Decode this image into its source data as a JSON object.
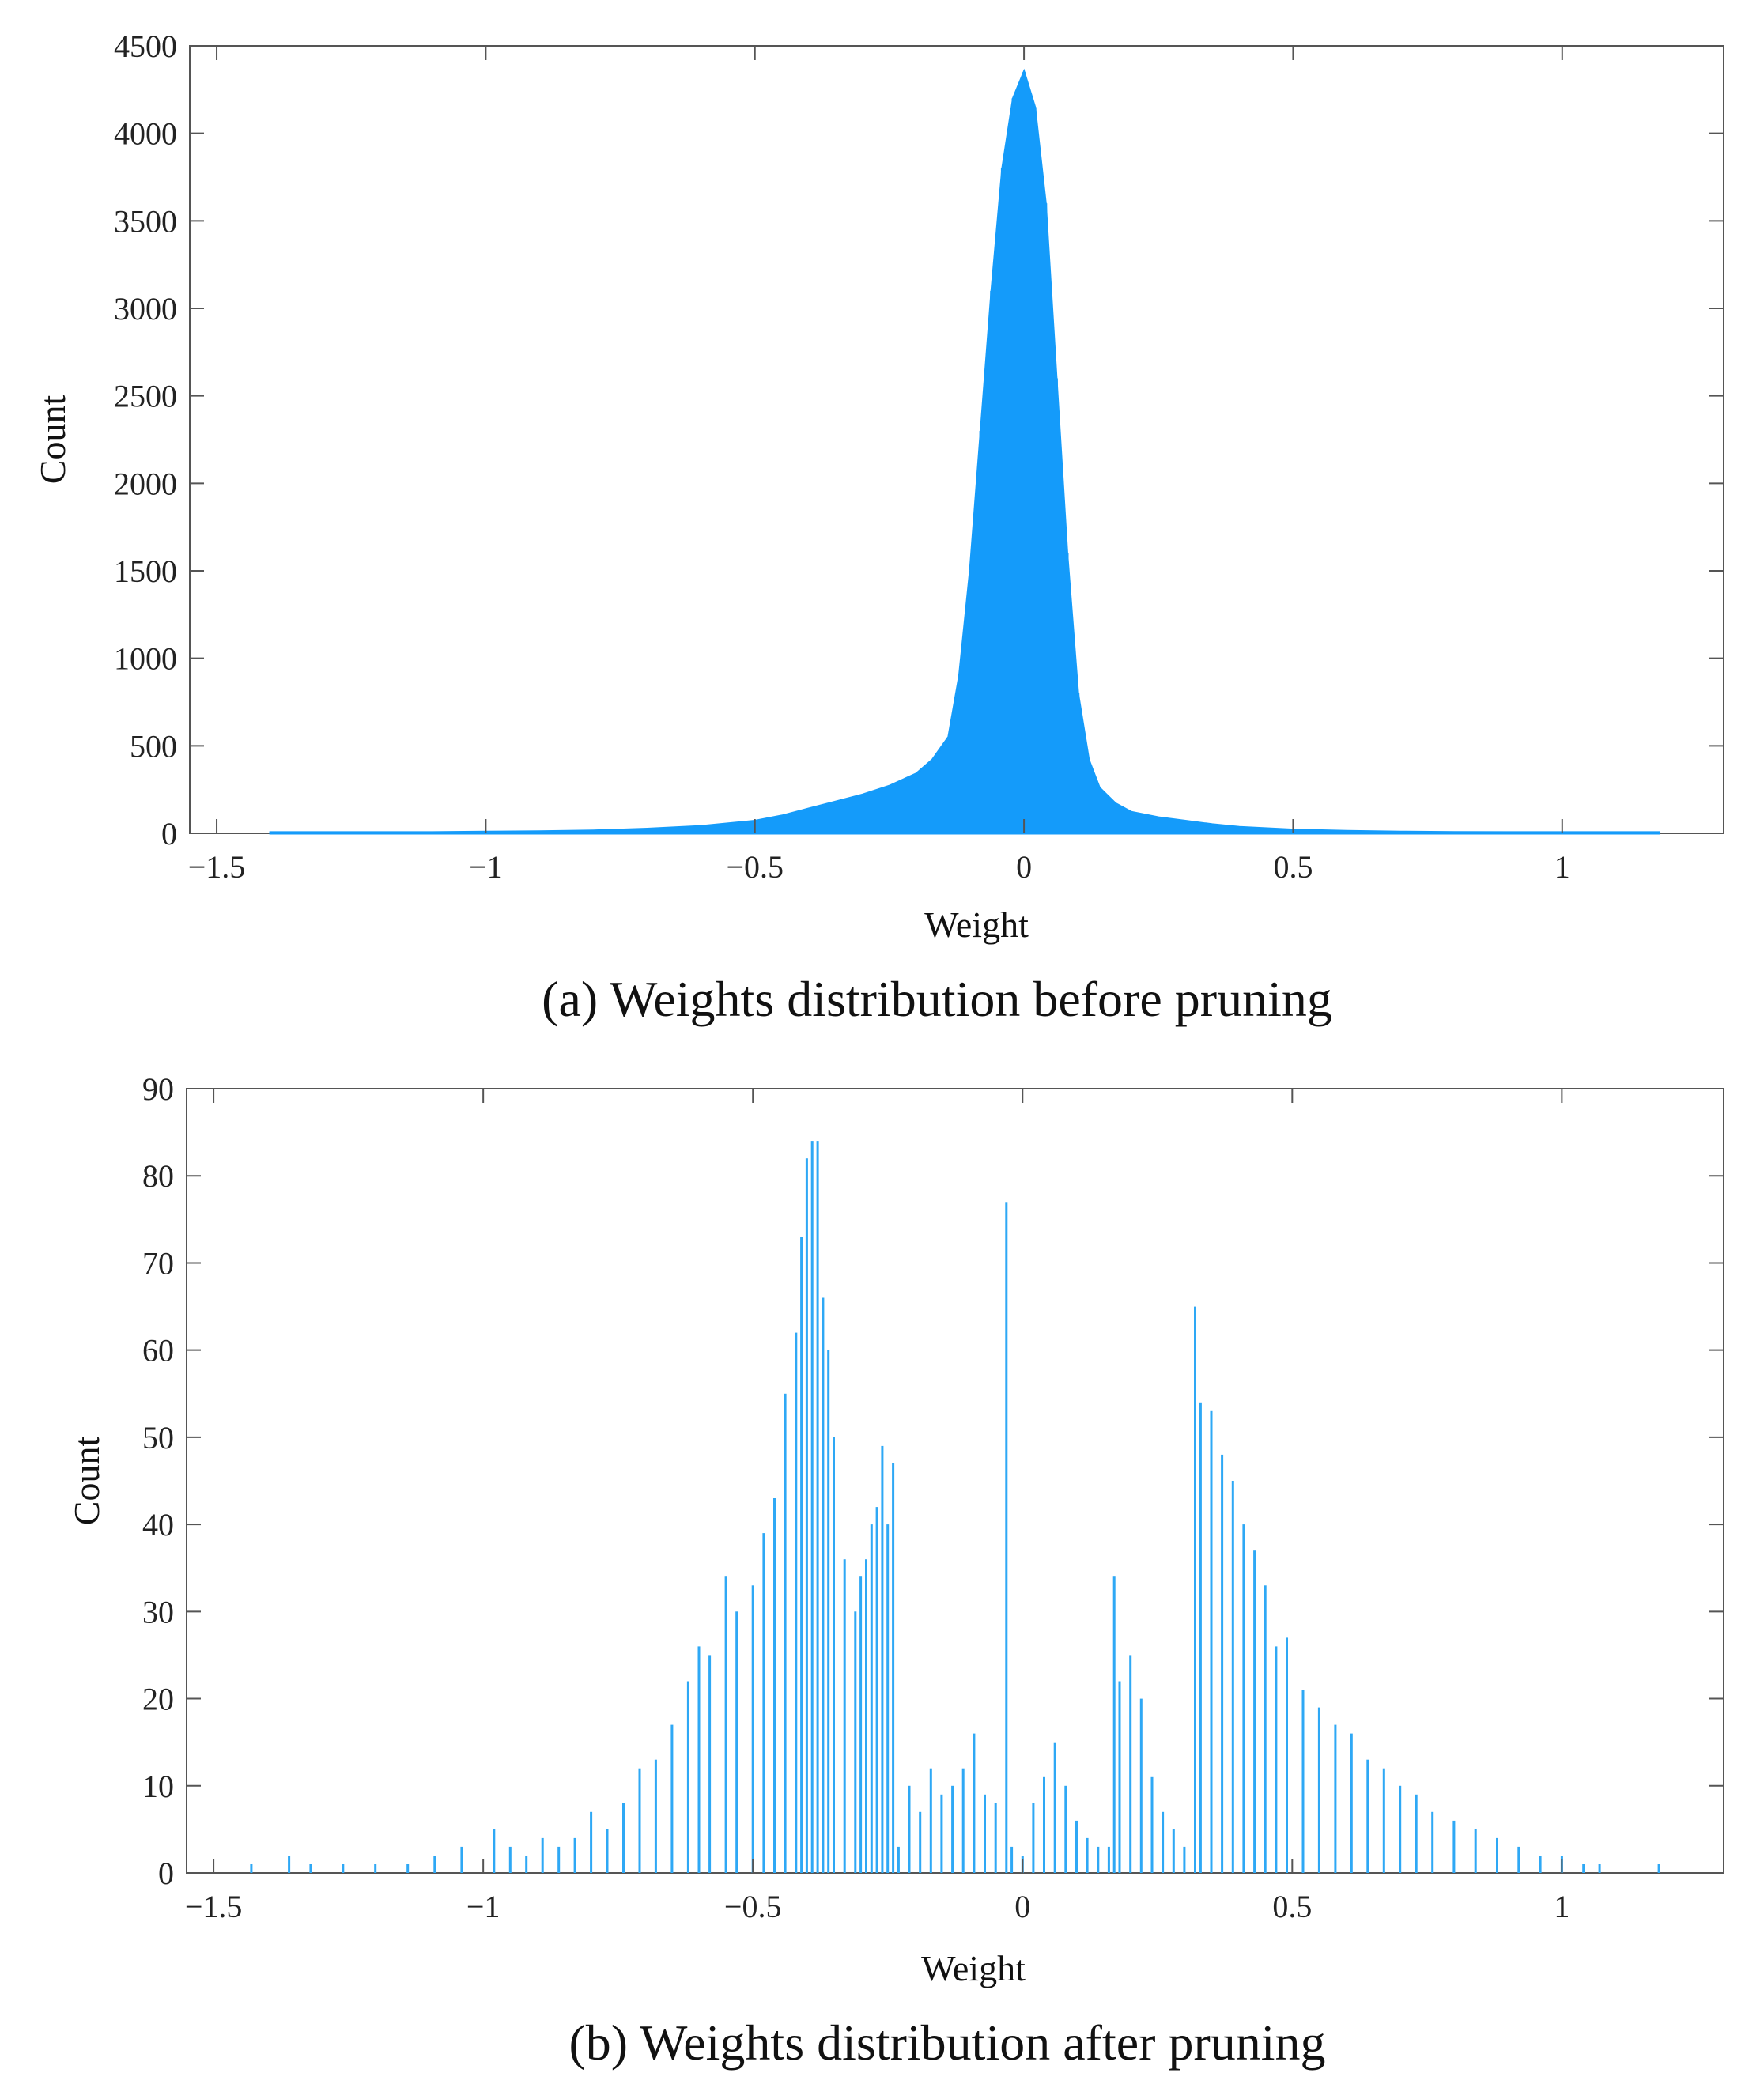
{
  "chart_data": [
    {
      "type": "bar",
      "color": "#149bfa",
      "title": "",
      "caption": "(a)  Weights distribution before pruning",
      "xlabel": "Weight",
      "ylabel": "Count",
      "xlim": [
        -1.55,
        1.3
      ],
      "ylim": [
        0,
        4500
      ],
      "xticks": [
        -1.5,
        -1,
        -0.5,
        0,
        0.5,
        1
      ],
      "xtick_labels": [
        "−1.5",
        "−1",
        "−0.5",
        "0",
        "0.5",
        "1"
      ],
      "yticks": [
        0,
        500,
        1000,
        1500,
        2000,
        2500,
        3000,
        3500,
        4000,
        4500
      ],
      "ytick_labels": [
        "0",
        "500",
        "1000",
        "1500",
        "2000",
        "2500",
        "3000",
        "3500",
        "4000",
        "4500"
      ],
      "x": [
        -1.4,
        -1.3,
        -1.2,
        -1.1,
        -1.0,
        -0.9,
        -0.8,
        -0.7,
        -0.6,
        -0.5,
        -0.45,
        -0.4,
        -0.35,
        -0.3,
        -0.25,
        -0.2,
        -0.17,
        -0.14,
        -0.12,
        -0.1,
        -0.08,
        -0.06,
        -0.04,
        -0.02,
        0.0,
        0.02,
        0.04,
        0.06,
        0.08,
        0.1,
        0.12,
        0.14,
        0.17,
        0.2,
        0.25,
        0.3,
        0.35,
        0.4,
        0.5,
        0.6,
        0.7,
        0.8,
        0.9,
        1.0,
        1.1,
        1.18
      ],
      "values": [
        5,
        5,
        5,
        5,
        8,
        10,
        15,
        25,
        40,
        70,
        100,
        140,
        180,
        220,
        270,
        340,
        420,
        550,
        900,
        1500,
        2300,
        3100,
        3800,
        4200,
        4350,
        4150,
        3600,
        2600,
        1600,
        800,
        420,
        260,
        170,
        120,
        90,
        70,
        50,
        35,
        20,
        12,
        8,
        6,
        5,
        5,
        5,
        5
      ]
    },
    {
      "type": "bar",
      "color": "#2ea8f5",
      "title": "",
      "caption": "(b)  Weights distribution after pruning",
      "xlabel": "Weight",
      "ylabel": "Count",
      "xlim": [
        -1.55,
        1.3
      ],
      "ylim": [
        0,
        90
      ],
      "xticks": [
        -1.5,
        -1,
        -0.5,
        0,
        0.5,
        1
      ],
      "xtick_labels": [
        "−1.5",
        "−1",
        "−0.5",
        "0",
        "0.5",
        "1"
      ],
      "yticks": [
        0,
        10,
        20,
        30,
        40,
        50,
        60,
        70,
        80,
        90
      ],
      "ytick_labels": [
        "0",
        "10",
        "20",
        "30",
        "40",
        "50",
        "60",
        "70",
        "80",
        "90"
      ],
      "x": [
        -1.43,
        -1.36,
        -1.32,
        -1.26,
        -1.2,
        -1.14,
        -1.09,
        -1.04,
        -0.98,
        -0.95,
        -0.92,
        -0.89,
        -0.86,
        -0.83,
        -0.8,
        -0.77,
        -0.74,
        -0.71,
        -0.68,
        -0.65,
        -0.62,
        -0.6,
        -0.58,
        -0.55,
        -0.53,
        -0.5,
        -0.48,
        -0.46,
        -0.44,
        -0.42,
        -0.41,
        -0.4,
        -0.39,
        -0.38,
        -0.37,
        -0.36,
        -0.35,
        -0.33,
        -0.31,
        -0.3,
        -0.29,
        -0.28,
        -0.27,
        -0.26,
        -0.25,
        -0.24,
        -0.23,
        -0.21,
        -0.19,
        -0.17,
        -0.15,
        -0.13,
        -0.11,
        -0.09,
        -0.07,
        -0.05,
        -0.03,
        -0.02,
        0.0,
        0.02,
        0.04,
        0.06,
        0.08,
        0.1,
        0.12,
        0.14,
        0.16,
        0.17,
        0.18,
        0.2,
        0.22,
        0.24,
        0.26,
        0.28,
        0.3,
        0.32,
        0.33,
        0.35,
        0.37,
        0.39,
        0.41,
        0.43,
        0.45,
        0.47,
        0.49,
        0.52,
        0.55,
        0.58,
        0.61,
        0.64,
        0.67,
        0.7,
        0.73,
        0.76,
        0.8,
        0.84,
        0.88,
        0.92,
        0.96,
        1.0,
        1.04,
        1.07,
        1.18
      ],
      "values": [
        1,
        2,
        1,
        1,
        1,
        1,
        2,
        3,
        5,
        3,
        2,
        4,
        3,
        4,
        7,
        5,
        8,
        12,
        13,
        17,
        22,
        26,
        25,
        34,
        30,
        33,
        39,
        43,
        55,
        62,
        73,
        82,
        84,
        84,
        66,
        60,
        50,
        36,
        30,
        34,
        36,
        40,
        42,
        49,
        40,
        47,
        3,
        10,
        7,
        12,
        9,
        10,
        12,
        16,
        9,
        8,
        77,
        3,
        2,
        8,
        11,
        15,
        10,
        6,
        4,
        3,
        3,
        34,
        22,
        25,
        20,
        11,
        7,
        5,
        3,
        65,
        54,
        53,
        48,
        45,
        40,
        37,
        33,
        26,
        27,
        21,
        19,
        17,
        16,
        13,
        12,
        10,
        9,
        7,
        6,
        5,
        4,
        3,
        2,
        2,
        1,
        1,
        1
      ]
    }
  ]
}
